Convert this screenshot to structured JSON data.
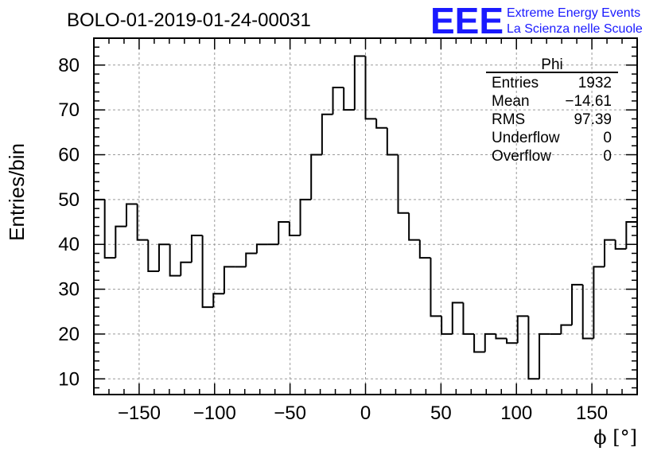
{
  "chart_data": {
    "type": "histogram",
    "title": "BOLO-01-2019-01-24-00031",
    "xlabel": "ϕ [°]",
    "ylabel": "Entries/bin",
    "xlim": [
      -180,
      180
    ],
    "ylim": [
      6.5,
      86
    ],
    "bin_width": 7.2,
    "grid": true,
    "x_ticks": [
      -150,
      -100,
      -50,
      0,
      50,
      100,
      150
    ],
    "x_tick_labels": [
      "−150",
      "−100",
      "−50",
      "0",
      "50",
      "100",
      "150"
    ],
    "y_ticks": [
      10,
      20,
      30,
      40,
      50,
      60,
      70,
      80
    ],
    "y_tick_labels": [
      "10",
      "20",
      "30",
      "40",
      "50",
      "60",
      "70",
      "80"
    ],
    "bin_edges_start": -180,
    "values": [
      50,
      37,
      44,
      49,
      41,
      34,
      40,
      33,
      36,
      42,
      26,
      29,
      35,
      35,
      38,
      40,
      40,
      45,
      42,
      50,
      60,
      69,
      75,
      70,
      82,
      68,
      66,
      60,
      47,
      41,
      37,
      24,
      20,
      27,
      20,
      16,
      20,
      19,
      18,
      24,
      10,
      20,
      20,
      22,
      31,
      19,
      35,
      41,
      39,
      45
    ]
  },
  "stats_box": {
    "title": "Phi",
    "rows": [
      {
        "label": "Entries",
        "value": "1932"
      },
      {
        "label": "Mean",
        "value": "−14.61"
      },
      {
        "label": "RMS",
        "value": "97.39"
      },
      {
        "label": "Underflow",
        "value": "0"
      },
      {
        "label": "Overflow",
        "value": "0"
      }
    ]
  },
  "branding": {
    "logo_text": "EEE",
    "line1": "Extreme Energy Events",
    "line2": "La Scienza nelle Scuole",
    "color": "#1a1aff"
  }
}
